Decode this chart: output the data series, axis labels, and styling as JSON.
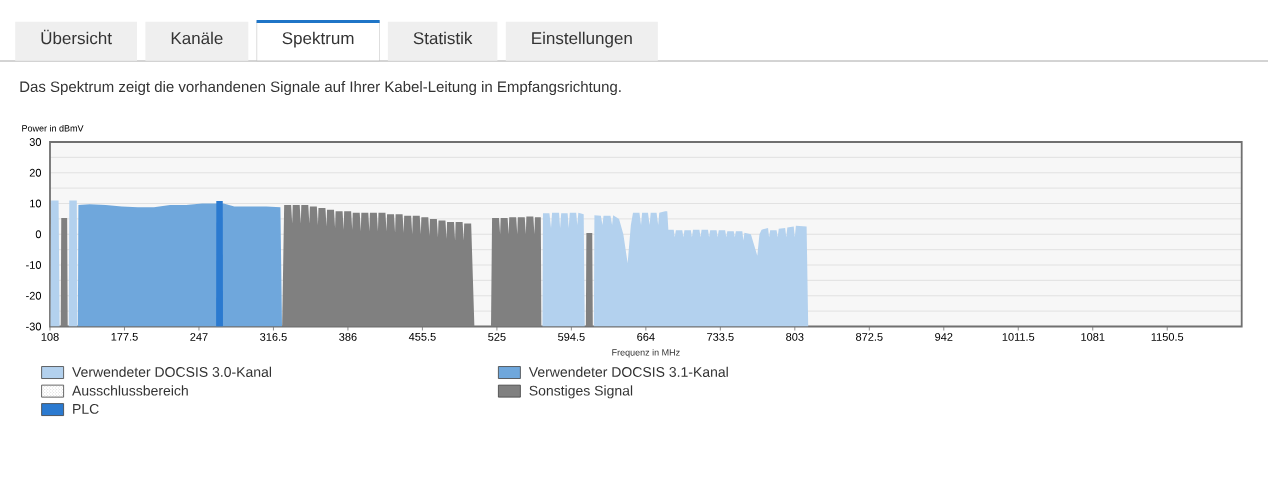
{
  "chart_data": {
    "type": "area",
    "subtitle": "Das Spektrum zeigt die vorhandenen Signale auf Ihrer Kabel-Leitung in Empfangsrichtung.",
    "annotations": [
      "Übersicht",
      "Kanäle",
      "Spektrum",
      "Statistik",
      "Einstellungen"
    ],
    "xlabel": "Frequenz in MHz",
    "ylabel": "Power in dBmV",
    "xlim": [
      108,
      1220
    ],
    "ylim": [
      -30,
      30
    ],
    "xticks": [
      108,
      177.5,
      247,
      316.5,
      386,
      455.5,
      525,
      594.5,
      664,
      733.5,
      803,
      872.5,
      942,
      1011.5,
      1081,
      1150.5
    ],
    "yticks": [
      -30,
      -20,
      -10,
      0,
      10,
      20,
      30
    ],
    "grid": "y",
    "legend": "bottom",
    "series": [
      {
        "name": "Verwendeter DOCSIS 3.0-Kanal",
        "color": "#b3d1ee",
        "x": [
          108.5,
          109,
          116,
          117,
          125.5,
          126,
          133,
          133.5,
          567.5,
          568,
          574,
          575.5,
          576.5,
          583,
          584,
          585,
          591,
          592,
          593,
          599,
          600,
          601,
          606,
          607,
          615.5,
          616,
          622,
          623.5,
          624.5,
          631,
          632.5,
          633.5,
          639,
          643,
          647,
          650,
          652,
          658,
          659.5,
          660.5,
          666,
          667.5,
          668.5,
          674,
          675.5,
          676.5,
          682,
          684,
          685,
          690,
          691,
          692,
          698,
          699,
          700,
          706,
          707,
          708,
          714,
          715,
          716,
          722,
          723,
          724,
          730,
          731,
          732,
          738,
          739,
          740,
          746,
          747,
          748,
          754,
          755,
          756,
          762,
          768,
          770,
          772,
          778,
          779,
          780,
          786,
          787,
          788,
          794,
          795,
          796,
          802,
          803,
          804,
          814,
          815.5
        ],
        "values": [
          -30,
          11,
          11,
          -30,
          -30,
          11,
          11,
          -30,
          -30,
          6.8,
          6.8,
          2,
          7,
          7,
          2,
          6.8,
          6.8,
          2,
          7,
          7,
          3,
          7,
          6.5,
          -30,
          -30,
          6.2,
          6,
          3,
          6,
          6,
          3,
          6.2,
          5,
          0,
          -9.4,
          3,
          7,
          7,
          3,
          7,
          7,
          3,
          7,
          7,
          3,
          7,
          7.5,
          7.5,
          1.5,
          1.5,
          -1,
          1.3,
          1.3,
          -1,
          1.3,
          1.3,
          -1,
          1.5,
          1.5,
          -1,
          1.5,
          1.5,
          -1,
          1.3,
          1.3,
          -1,
          1.3,
          1.3,
          -1,
          1,
          1,
          -1,
          1,
          1,
          -2,
          0.5,
          0,
          -7,
          0,
          1.5,
          2,
          -1,
          1.3,
          1.3,
          -1,
          1.8,
          2,
          -1,
          2.2,
          2.5,
          -1,
          2.8,
          2.5,
          -30
        ]
      },
      {
        "name": "Verwendeter DOCSIS 3.1-Kanal",
        "color": "#6fa7dc",
        "x": [
          134,
          134.5,
          145,
          160,
          175,
          190,
          205,
          220,
          235,
          250,
          262,
          270,
          280,
          295,
          310,
          323,
          324.5
        ],
        "values": [
          -30,
          9.5,
          9.8,
          9.5,
          9,
          8.8,
          8.8,
          9.5,
          9.5,
          10,
          10,
          10,
          9,
          9,
          9,
          8.8,
          -30
        ]
      },
      {
        "name": "Ausschlussbereich",
        "color": "#c8c8c8"
      },
      {
        "name": "Sonstiges Signal",
        "color": "#808080",
        "x": [
          118,
          118.5,
          124,
          124.5,
          324.6,
          326.5,
          333,
          334,
          334.5,
          341,
          342,
          342.5,
          349,
          350,
          350.5,
          357,
          358,
          358.5,
          365,
          366,
          366.5,
          373,
          374,
          374.5,
          381,
          382,
          382.5,
          389,
          390,
          390.5,
          397,
          398,
          398.5,
          405,
          406,
          406.5,
          413,
          414,
          414.5,
          421,
          422,
          422.5,
          429,
          430,
          430.5,
          437,
          438,
          438.5,
          445,
          446,
          446.5,
          453,
          454,
          454.5,
          461,
          462,
          462.5,
          469,
          470,
          470.5,
          477,
          478,
          478.5,
          485,
          486,
          486.5,
          493,
          494,
          494.5,
          501,
          504,
          519.5,
          520.5,
          527,
          528,
          528.5,
          535,
          536,
          536.5,
          543,
          544,
          544.5,
          551,
          552,
          552.5,
          559,
          560,
          560.5,
          566,
          566.5,
          608,
          608.5,
          614,
          614.5
        ],
        "values": [
          -30,
          5.3,
          5.3,
          -30,
          -30,
          9.5,
          9.5,
          3.5,
          9.5,
          9.5,
          3.5,
          9.5,
          9.5,
          3.5,
          9,
          9,
          3,
          8.5,
          8.5,
          2.5,
          8,
          8,
          2,
          7.5,
          7.5,
          1.5,
          7.5,
          7.5,
          1.5,
          7,
          7,
          1,
          7,
          7,
          1,
          7,
          7,
          1,
          7,
          7,
          1,
          6.5,
          6.5,
          0.5,
          6.5,
          6.5,
          0.5,
          6,
          6,
          0,
          6,
          6,
          0,
          5.5,
          5.5,
          -0.5,
          5,
          5,
          -1,
          4.5,
          4.5,
          -1.5,
          4,
          4,
          -2,
          4,
          4,
          -2,
          3.5,
          3.5,
          -30,
          -30,
          5.3,
          5.3,
          0,
          5.3,
          5.3,
          0,
          5.5,
          5.5,
          0,
          5.5,
          5.5,
          0,
          5.8,
          5.8,
          0,
          5.5,
          5.5,
          -30,
          -30,
          0.4,
          0.4,
          -30
        ]
      },
      {
        "name": "PLC",
        "color": "#2b7ad0",
        "x": [
          263,
          263.2,
          269.2,
          269.4
        ],
        "values": [
          -30,
          10.8,
          10.8,
          -30
        ]
      }
    ]
  }
}
